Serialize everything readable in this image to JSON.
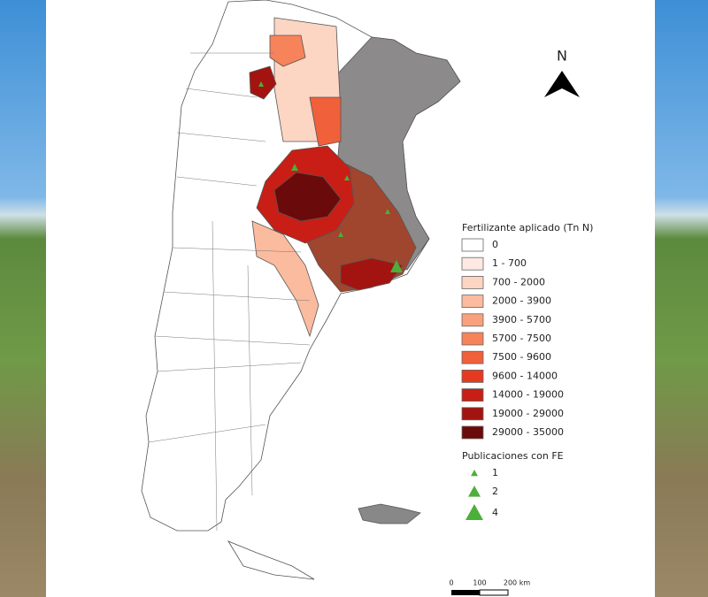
{
  "north": "N",
  "legend": {
    "title": "Fertilizante aplicado (Tn N)",
    "classes": [
      {
        "label": "0",
        "color": "#ffffff"
      },
      {
        "label": "1 - 700",
        "color": "#fde9e1"
      },
      {
        "label": "700 - 2000",
        "color": "#fcd5c3"
      },
      {
        "label": "2000 - 3900",
        "color": "#fbbb9f"
      },
      {
        "label": "3900 - 5700",
        "color": "#f9a07d"
      },
      {
        "label": "5700 - 7500",
        "color": "#f6835a"
      },
      {
        "label": "7500 - 9600",
        "color": "#f0603a"
      },
      {
        "label": "9600 - 14000",
        "color": "#e63a20"
      },
      {
        "label": "14000 - 19000",
        "color": "#c81e16"
      },
      {
        "label": "19000 - 29000",
        "color": "#a31410"
      },
      {
        "label": "29000 - 35000",
        "color": "#6b0a0a"
      }
    ]
  },
  "publications": {
    "title": "Publicaciones con FE",
    "color": "#4caf3a",
    "items": [
      "1",
      "2",
      "4"
    ]
  },
  "scale": [
    "0",
    "100",
    "200 km"
  ]
}
